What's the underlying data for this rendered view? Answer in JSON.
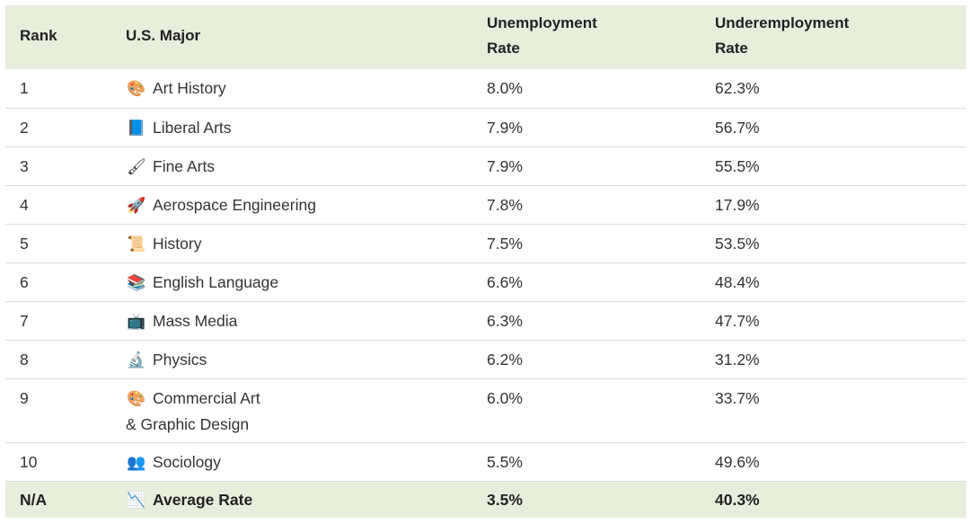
{
  "chart_data": {
    "type": "table",
    "columns": [
      "Rank",
      "U.S. Major",
      "Unemployment Rate",
      "Underemployment Rate"
    ],
    "header": {
      "rank": "Rank",
      "major": "U.S. Major",
      "unemployment": "Unemployment\nRate",
      "underemployment": "Underemployment\nRate"
    },
    "rows": [
      {
        "rank": "1",
        "icon": "palette-icon",
        "glyph": "🎨",
        "major": "Art History",
        "unemployment": "8.0%",
        "underemployment": "62.3%"
      },
      {
        "rank": "2",
        "icon": "blue-book-icon",
        "glyph": "📘",
        "major": "Liberal Arts",
        "unemployment": "7.9%",
        "underemployment": "56.7%"
      },
      {
        "rank": "3",
        "icon": "paintbrush-icon",
        "glyph": "🖌",
        "major": "Fine Arts",
        "unemployment": "7.9%",
        "underemployment": "55.5%"
      },
      {
        "rank": "4",
        "icon": "rocket-icon",
        "glyph": "🚀",
        "major": "Aerospace Engineering",
        "unemployment": "7.8%",
        "underemployment": "17.9%"
      },
      {
        "rank": "5",
        "icon": "scroll-icon",
        "glyph": "📜",
        "major": "History",
        "unemployment": "7.5%",
        "underemployment": "53.5%"
      },
      {
        "rank": "6",
        "icon": "books-icon",
        "glyph": "📚",
        "major": "English Language",
        "unemployment": "6.6%",
        "underemployment": "48.4%"
      },
      {
        "rank": "7",
        "icon": "television-icon",
        "glyph": "📺",
        "major": "Mass Media",
        "unemployment": "6.3%",
        "underemployment": "47.7%"
      },
      {
        "rank": "8",
        "icon": "microscope-icon",
        "glyph": "🔬",
        "major": "Physics",
        "unemployment": "6.2%",
        "underemployment": "31.2%"
      },
      {
        "rank": "9",
        "icon": "palette-icon",
        "glyph": "🎨",
        "major": "Commercial Art\n& Graphic Design",
        "unemployment": "6.0%",
        "underemployment": "33.7%"
      },
      {
        "rank": "10",
        "icon": "people-icon",
        "glyph": "👥",
        "major": "Sociology",
        "unemployment": "5.5%",
        "underemployment": "49.6%"
      }
    ],
    "footer": {
      "rank": "N/A",
      "icon": "chart-decreasing-icon",
      "glyph": "📉",
      "major": "Average Rate",
      "unemployment": "3.5%",
      "underemployment": "40.3%"
    },
    "colors": {
      "header_bg": "#e7eedc",
      "footer_bg": "#e7eedc",
      "row_border": "#dcdcdc"
    }
  }
}
